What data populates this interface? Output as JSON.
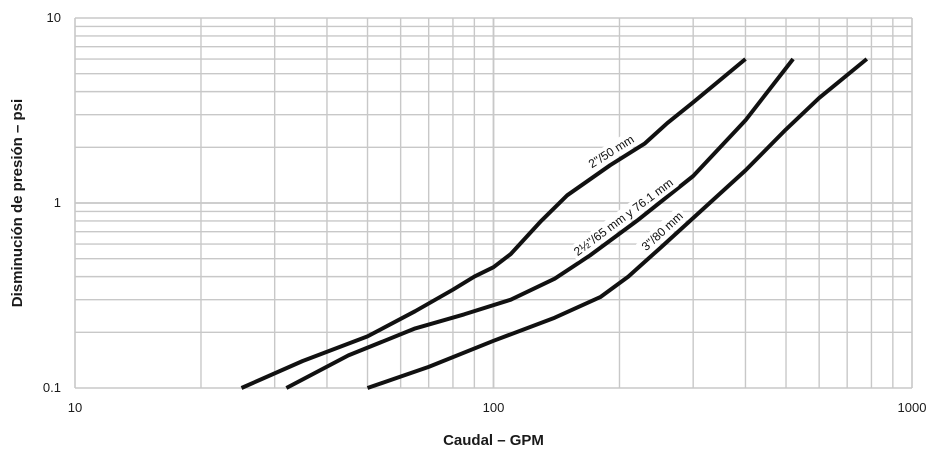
{
  "chart_data": {
    "type": "line",
    "xlabel": "Caudal – GPM",
    "ylabel": "Disminución de presión – psi",
    "xscale": "log",
    "yscale": "log",
    "xlim": [
      10,
      1000
    ],
    "ylim": [
      0.1,
      10
    ],
    "x_ticks": [
      {
        "value": 10,
        "label": "10"
      },
      {
        "value": 100,
        "label": "100"
      },
      {
        "value": 1000,
        "label": "1000"
      }
    ],
    "y_ticks": [
      {
        "value": 0.1,
        "label": "0.1"
      },
      {
        "value": 1,
        "label": "1"
      },
      {
        "value": 10,
        "label": "10"
      }
    ],
    "grid": true,
    "colors": {
      "line": "#111111",
      "grid": "#c8c8c8",
      "label_bg": "#ffffff"
    },
    "series": [
      {
        "name": "2\"/50 mm",
        "points": [
          [
            25,
            0.1
          ],
          [
            35,
            0.14
          ],
          [
            50,
            0.19
          ],
          [
            65,
            0.26
          ],
          [
            80,
            0.34
          ],
          [
            90,
            0.4
          ],
          [
            100,
            0.45
          ],
          [
            110,
            0.53
          ],
          [
            130,
            0.8
          ],
          [
            150,
            1.1
          ],
          [
            190,
            1.6
          ],
          [
            230,
            2.1
          ],
          [
            260,
            2.7
          ],
          [
            300,
            3.5
          ],
          [
            400,
            6
          ]
        ]
      },
      {
        "name": "2½\"/65 mm y 76.1 mm",
        "points": [
          [
            32,
            0.1
          ],
          [
            45,
            0.15
          ],
          [
            65,
            0.21
          ],
          [
            85,
            0.25
          ],
          [
            110,
            0.3
          ],
          [
            140,
            0.39
          ],
          [
            170,
            0.52
          ],
          [
            220,
            0.8
          ],
          [
            300,
            1.4
          ],
          [
            400,
            2.8
          ],
          [
            520,
            6
          ]
        ]
      },
      {
        "name": "3\"/80 mm",
        "points": [
          [
            50,
            0.1
          ],
          [
            70,
            0.13
          ],
          [
            100,
            0.18
          ],
          [
            140,
            0.24
          ],
          [
            180,
            0.31
          ],
          [
            210,
            0.4
          ],
          [
            250,
            0.57
          ],
          [
            300,
            0.83
          ],
          [
            400,
            1.5
          ],
          [
            500,
            2.5
          ],
          [
            600,
            3.7
          ],
          [
            780,
            6
          ]
        ]
      }
    ],
    "annotations": [
      {
        "series": 0,
        "text": "2\"/50 mm"
      },
      {
        "series": 1,
        "text": "2½\"/65 mm y 76.1 mm"
      },
      {
        "series": 2,
        "text": "3\"/80 mm"
      }
    ]
  }
}
